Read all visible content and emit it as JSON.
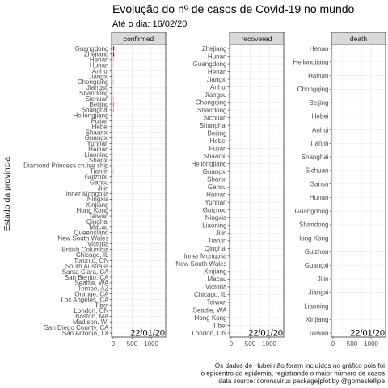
{
  "chart_data": {
    "type": "bar",
    "orientation": "horizontal",
    "title": "Evolução do nº de casos de Covid-19 no mundo",
    "subtitle": "Até o dia: 16/02/20",
    "ylabel": "Estado da provincia",
    "caption": [
      "Os dados de Hubei não foram incluídos no gráfico pois foi",
      "o epicentro da epidemia, registrando o maior número de casos",
      "data source: coronavirus package|plot by @gomesfellipe"
    ],
    "date_label": "22/01/20",
    "x_ticks": [
      0,
      500,
      1000
    ],
    "xlim": [
      -40,
      1380
    ],
    "bar_color": "#8b1a1a",
    "grid": true,
    "panels": [
      {
        "name": "confirmed",
        "categories": [
          "Guangdong",
          "Zhejiang",
          "Henan",
          "Hunan",
          "Anhui",
          "Jiangxi",
          "Chongqing",
          "Jiangsu",
          "Shandong",
          "Sichuan",
          "Beijing",
          "Shanghai",
          "Heilongjiang",
          "Fujian",
          "Hebei",
          "Shaanxi",
          "Guangxi",
          "Yunnan",
          "Hainan",
          "Liaoning",
          "Shanxi",
          "Diamond Princess cruise ship",
          "Tianjin",
          "Guizhou",
          "Gansu",
          "Jilin",
          "Inner Mongolia",
          "Ningxia",
          "Xinjiang",
          "Hong Kong",
          "Taiwan",
          "Qinghai",
          "Macau",
          "Queensland",
          "New South Wales",
          "Victoria",
          "British Columbia",
          "Chicago, IL",
          "Toronto, ON",
          "South Australia",
          "Santa Clara, CA",
          "San Benito, CA",
          "Seattle, WA",
          "Tempe, AZ",
          "Orange, CA",
          "Los Angeles, CA",
          "Tibet",
          "London, ON",
          "Boston, MA",
          "Madison, WI",
          "San Diego County, CA",
          "San Antonio, TX"
        ],
        "values": [
          26,
          27,
          5,
          4,
          1,
          2,
          5,
          1,
          2,
          5,
          14,
          9,
          0,
          1,
          1,
          0,
          2,
          1,
          0,
          2,
          1,
          0,
          4,
          1,
          0,
          0,
          0,
          1,
          0,
          0,
          1,
          0,
          1,
          0,
          0,
          0,
          0,
          1,
          0,
          0,
          0,
          0,
          1,
          0,
          0,
          0,
          0,
          0,
          0,
          0,
          0,
          0
        ]
      },
      {
        "name": "recovered",
        "categories": [
          "Zhejiang",
          "Hunan",
          "Guangdong",
          "Henan",
          "Jiangxi",
          "Anhui",
          "Jiangsu",
          "Chongqing",
          "Shandong",
          "Sichuan",
          "Shanghai",
          "Beijing",
          "Hebei",
          "Fujian",
          "Shaanxi",
          "Heilongjiang",
          "Guangxi",
          "Shanxi",
          "Gansu",
          "Hainan",
          "Yunnan",
          "Guizhou",
          "Ningxia",
          "Liaoning",
          "Jilin",
          "Tianjin",
          "Qinghai",
          "Inner Mongolia",
          "New South Wales",
          "Xinjiang",
          "Macau",
          "Victoria",
          "Chicago, IL",
          "Taiwan",
          "Seattle, WA",
          "Hong Kong",
          "Tibet",
          "London, ON"
        ],
        "values": [
          0,
          0,
          0,
          0,
          0,
          0,
          0,
          0,
          0,
          0,
          0,
          0,
          0,
          0,
          0,
          0,
          0,
          0,
          0,
          0,
          0,
          0,
          0,
          0,
          0,
          0,
          0,
          0,
          0,
          0,
          0,
          0,
          0,
          0,
          0,
          0,
          0,
          0
        ]
      },
      {
        "name": "death",
        "categories": [
          "Henan",
          "Heilongjiang",
          "Hainan",
          "Chongqing",
          "Beijing",
          "Hebei",
          "Anhui",
          "Tianjin",
          "Shanghai",
          "Sichuan",
          "Gansu",
          "Hunan",
          "Guangdong",
          "Shandong",
          "Hong Kong",
          "Guizhou",
          "Guangxi",
          "Jilin",
          "Jiangxi",
          "Liaoning",
          "Xinjiang",
          "Taiwan"
        ],
        "values": [
          0,
          0,
          0,
          0,
          0,
          0,
          0,
          0,
          0,
          0,
          0,
          0,
          0,
          0,
          0,
          0,
          0,
          0,
          0,
          0,
          0,
          0
        ]
      }
    ]
  }
}
